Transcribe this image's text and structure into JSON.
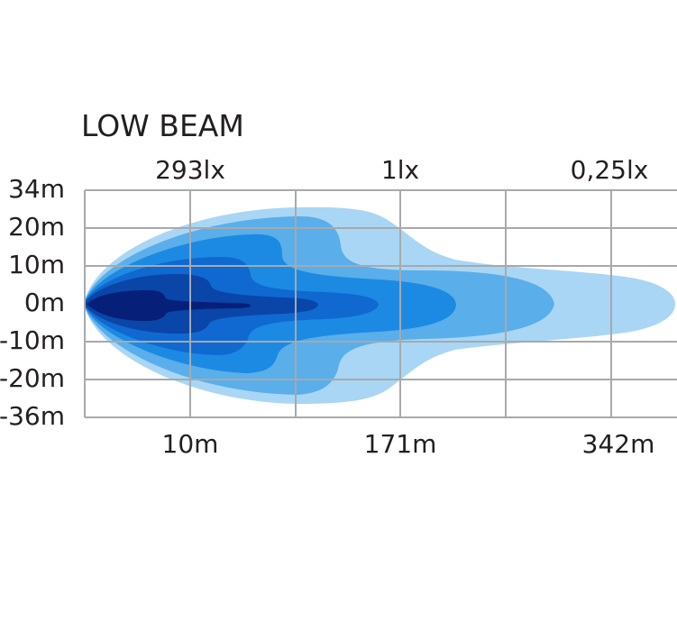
{
  "chart_data": {
    "type": "heatmap",
    "title": "LOW BEAM",
    "lux_labels": [
      "293lx",
      "1lx",
      "0,25lx"
    ],
    "y_ticks": [
      "34m",
      "20m",
      "10m",
      "0m",
      "-10m",
      "-20m",
      "-36m"
    ],
    "x_ticks": [
      "10m",
      "171m",
      "342m"
    ],
    "grid": true,
    "zone_colors": [
      "#a9d6f4",
      "#5aaeea",
      "#1c8ae2",
      "#0f69d0",
      "#0a45a8",
      "#06207a"
    ]
  }
}
